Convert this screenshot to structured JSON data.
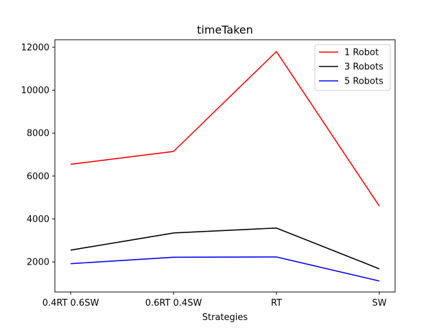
{
  "chart_data": {
    "type": "line",
    "title": "timeTaken",
    "xlabel": "Strategies",
    "ylabel": "",
    "categories": [
      "0.4RT 0.6SW",
      "0.6RT 0.4SW",
      "RT",
      "SW"
    ],
    "series": [
      {
        "name": "1 Robot",
        "color": "#ff0000",
        "values": [
          6550,
          7150,
          11800,
          4600
        ]
      },
      {
        "name": "3 Robots",
        "color": "#000000",
        "values": [
          2550,
          3350,
          3580,
          1680
        ]
      },
      {
        "name": "5 Robots",
        "color": "#0000ff",
        "values": [
          1920,
          2220,
          2230,
          1110
        ]
      }
    ],
    "ylim": [
      600,
      12350
    ],
    "yticks": [
      2000,
      4000,
      6000,
      8000,
      10000,
      12000
    ],
    "grid": false,
    "legend": "top-right"
  }
}
